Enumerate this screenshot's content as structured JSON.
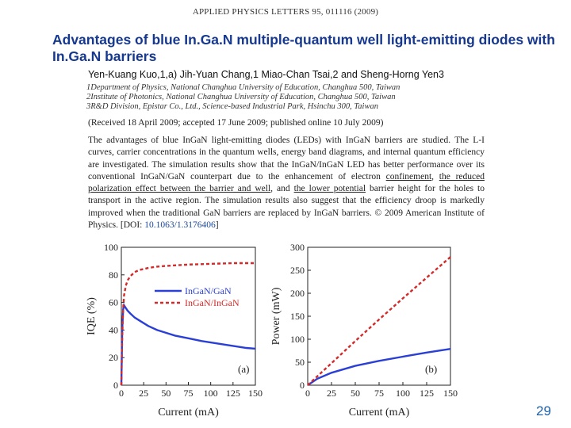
{
  "header": {
    "journal": "APPLIED PHYSICS LETTERS 95, 011116 (2009)"
  },
  "title": "Advantages of blue In.Ga.N multiple-quantum well light-emitting diodes with In.Ga.N barriers",
  "authors": "Yen-Kuang Kuo,1,a) Jih-Yuan Chang,1 Miao-Chan Tsai,2 and Sheng-Horng Yen3",
  "affiliations": [
    "1Department of Physics, National Changhua University of Education, Changhua 500, Taiwan",
    "2Institute of Photonics, National Changhua University of Education, Changhua 500, Taiwan",
    "3R&D Division, Epistar Co., Ltd., Science-based Industrial Park, Hsinchu 300, Taiwan"
  ],
  "received": "(Received 18 April 2009; accepted 17 June 2009; published online 10 July 2009)",
  "abstract": {
    "part1": "The advantages of blue InGaN light-emitting diodes (LEDs) with InGaN barriers are studied. The L-I curves, carrier concentrations in the quantum wells, energy band diagrams, and internal quantum efficiency are investigated. The simulation results show that the InGaN/InGaN LED has better performance over its conventional InGaN/GaN counterpart due to the enhancement of electron ",
    "u1": "confinement",
    "s1": ", ",
    "u2": "the reduced polarization effect between the barrier and well",
    "s2": ", and ",
    "u3": "the lower potential",
    "part2": " barrier height for the holes to transport in the active region. The simulation results also suggest that the efficiency droop is markedly improved when the traditional GaN barriers are replaced by InGaN barriers. © 2009 American Institute of Physics. [DOI: ",
    "doi": "10.1063/1.3176406",
    "part3": "]"
  },
  "chart_data": [
    {
      "type": "line",
      "panel": "(a)",
      "xlabel": "Current (mA)",
      "ylabel": "IQE (%)",
      "xlim": [
        0,
        150
      ],
      "ylim": [
        0,
        100
      ],
      "xticks": [
        0,
        25,
        50,
        75,
        100,
        125,
        150
      ],
      "yticks": [
        0,
        20,
        40,
        60,
        80,
        100
      ],
      "grid": false,
      "legend_position": "center-right",
      "series": [
        {
          "name": "InGaN/GaN",
          "color": "#2a3fd6",
          "style": "solid",
          "x": [
            0,
            1,
            2,
            3,
            5,
            7,
            10,
            15,
            20,
            30,
            40,
            50,
            60,
            75,
            90,
            100,
            110,
            125,
            140,
            150
          ],
          "y": [
            0,
            40,
            55,
            58,
            56,
            54,
            52,
            49,
            47,
            43,
            40,
            38,
            36,
            34,
            32,
            31,
            30,
            28.5,
            27,
            26.5
          ]
        },
        {
          "name": "InGaN/InGaN",
          "color": "#d42a2a",
          "style": "dashed",
          "x": [
            0,
            1,
            2,
            3,
            5,
            7,
            10,
            15,
            20,
            30,
            40,
            50,
            75,
            100,
            125,
            150
          ],
          "y": [
            0,
            35,
            55,
            65,
            72,
            76,
            79,
            82,
            83.5,
            85,
            86,
            86.5,
            87.5,
            88,
            88.5,
            88.5
          ]
        }
      ]
    },
    {
      "type": "line",
      "panel": "(b)",
      "xlabel": "Current (mA)",
      "ylabel": "Power (mW)",
      "xlim": [
        0,
        150
      ],
      "ylim": [
        0,
        300
      ],
      "xticks": [
        0,
        25,
        50,
        75,
        100,
        125,
        150
      ],
      "yticks": [
        0,
        50,
        100,
        150,
        200,
        250,
        300
      ],
      "grid": false,
      "series": [
        {
          "color": "#2a3fd6",
          "style": "solid",
          "x": [
            0,
            10,
            25,
            50,
            75,
            100,
            125,
            150
          ],
          "y": [
            0,
            14,
            27,
            42,
            53,
            62,
            71,
            79
          ]
        },
        {
          "color": "#d42a2a",
          "style": "dashed",
          "x": [
            0,
            25,
            50,
            75,
            100,
            125,
            150
          ],
          "y": [
            0,
            48,
            96,
            143,
            189,
            234,
            279
          ]
        }
      ]
    }
  ],
  "page_number": "29"
}
